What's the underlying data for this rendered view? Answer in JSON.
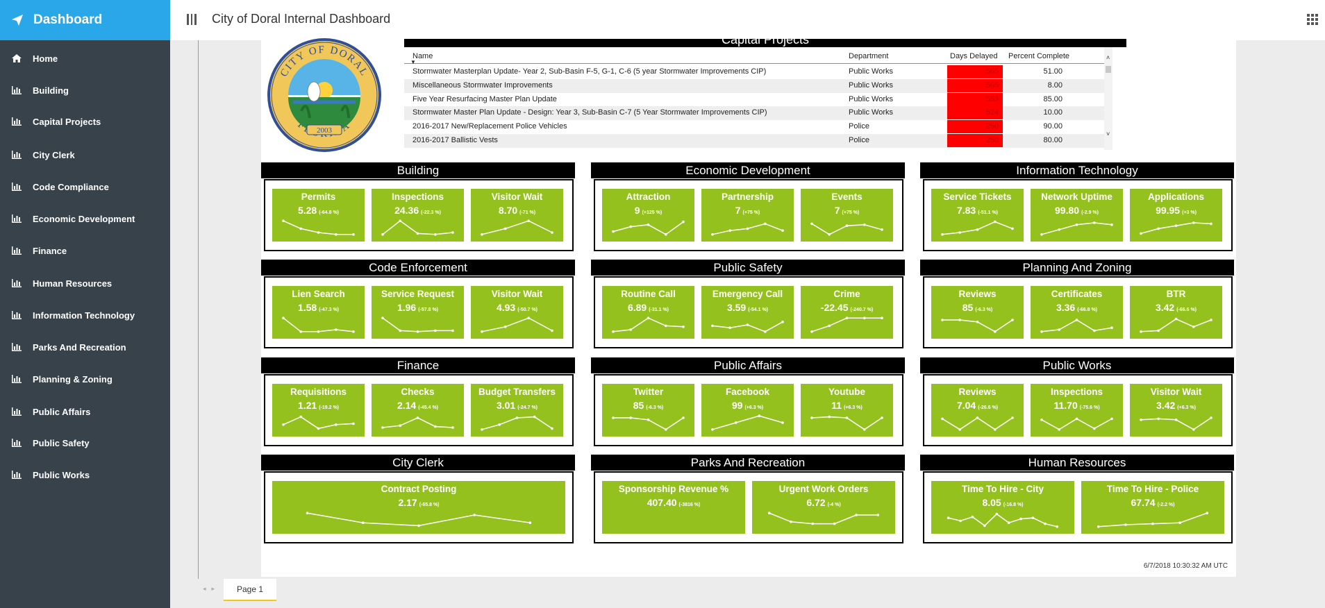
{
  "app": {
    "brand": "Dashboard",
    "title": "City of Doral Internal Dashboard"
  },
  "sidebar": {
    "items": [
      {
        "label": "Home",
        "icon": "home-icon"
      },
      {
        "label": "Building",
        "icon": "bar-chart-icon"
      },
      {
        "label": "Capital Projects",
        "icon": "bar-chart-icon"
      },
      {
        "label": "City Clerk",
        "icon": "bar-chart-icon"
      },
      {
        "label": "Code Compliance",
        "icon": "bar-chart-icon"
      },
      {
        "label": "Economic Development",
        "icon": "bar-chart-icon"
      },
      {
        "label": "Finance",
        "icon": "bar-chart-icon"
      },
      {
        "label": "Human Resources",
        "icon": "bar-chart-icon"
      },
      {
        "label": "Information Technology",
        "icon": "bar-chart-icon"
      },
      {
        "label": "Parks And Recreation",
        "icon": "bar-chart-icon"
      },
      {
        "label": "Planning & Zoning",
        "icon": "bar-chart-icon"
      },
      {
        "label": "Public Affairs",
        "icon": "bar-chart-icon"
      },
      {
        "label": "Public Safety",
        "icon": "bar-chart-icon"
      },
      {
        "label": "Public Works",
        "icon": "bar-chart-icon"
      }
    ]
  },
  "logo": {
    "top_text": "CITY OF DORAL",
    "bottom_text": "FLORIDA",
    "year": "2003"
  },
  "capital_projects": {
    "title": "Capital Projects",
    "columns": [
      "Name",
      "Department",
      "Days Delayed",
      "Percent Complete"
    ],
    "rows": [
      {
        "name": "Stormwater Masterplan Update- Year 2, Sub-Basin F-5, G-1, C-6 (5 year Stormwater Improvements CIP)",
        "department": "Public Works",
        "days": "565",
        "percent": "51.00"
      },
      {
        "name": "Miscellaneous Stormwater Improvements",
        "department": "Public Works",
        "days": "565",
        "percent": "8.00"
      },
      {
        "name": "Five Year Resurfacing Master Plan Update",
        "department": "Public Works",
        "days": "553",
        "percent": "85.00"
      },
      {
        "name": "Stormwater Master Plan Update - Design: Year 3, Sub-Basin C-7 (5 Year Stormwater Improvements CIP)",
        "department": "Public Works",
        "days": "524",
        "percent": "10.00"
      },
      {
        "name": "2016-2017 New/Replacement Police Vehicles",
        "department": "Police",
        "days": "250",
        "percent": "90.00"
      },
      {
        "name": "2016-2017 Ballistic Vests",
        "department": "Police",
        "days": "250",
        "percent": "80.00"
      }
    ]
  },
  "sections": [
    {
      "title": "Building",
      "tiles": [
        {
          "name": "Permits",
          "value": "5.28",
          "change": "(-64.8 %)",
          "trend": [
            0.85,
            0.45,
            0.25,
            0.15,
            0.15
          ]
        },
        {
          "name": "Inspections",
          "value": "24.36",
          "change": "(-22.3 %)",
          "trend": [
            0.15,
            0.85,
            0.2,
            0.15,
            0.25
          ]
        },
        {
          "name": "Visitor Wait",
          "value": "8.70",
          "change": "(-71 %)",
          "trend": [
            0.15,
            0.45,
            0.85,
            0.25
          ]
        }
      ]
    },
    {
      "title": "Economic Development",
      "tiles": [
        {
          "name": "Attraction",
          "value": "9",
          "change": "(+125 %)",
          "trend": [
            0.3,
            0.55,
            0.65,
            0.15,
            0.8
          ]
        },
        {
          "name": "Partnership",
          "value": "7",
          "change": "(+75 %)",
          "trend": [
            0.15,
            0.35,
            0.45,
            0.7,
            0.35
          ]
        },
        {
          "name": "Events",
          "value": "7",
          "change": "(+75 %)",
          "trend": [
            0.7,
            0.15,
            0.6,
            0.65,
            0.4
          ]
        }
      ]
    },
    {
      "title": "Information Technology",
      "tiles": [
        {
          "name": "Service Tickets",
          "value": "7.83",
          "change": "(-51.1 %)",
          "trend": [
            0.15,
            0.25,
            0.4,
            0.8,
            0.45
          ]
        },
        {
          "name": "Network Uptime",
          "value": "99.80",
          "change": "(-2.9 %)",
          "trend": [
            0.15,
            0.4,
            0.65,
            0.75,
            0.65
          ]
        },
        {
          "name": "Applications",
          "value": "99.95",
          "change": "(+3 %)",
          "trend": [
            0.2,
            0.45,
            0.6,
            0.75,
            0.7
          ]
        }
      ]
    },
    {
      "title": "Code Enforcement",
      "tiles": [
        {
          "name": "Lien Search",
          "value": "1.58",
          "change": "(-47.3 %)",
          "trend": [
            0.85,
            0.15,
            0.15,
            0.25,
            0.15
          ]
        },
        {
          "name": "Service Request",
          "value": "1.96",
          "change": "(-57.8 %)",
          "trend": [
            0.85,
            0.2,
            0.15,
            0.2,
            0.2
          ]
        },
        {
          "name": "Visitor Wait",
          "value": "4.93",
          "change": "(-50.7 %)",
          "trend": [
            0.15,
            0.4,
            0.85,
            0.2
          ]
        }
      ]
    },
    {
      "title": "Public Safety",
      "tiles": [
        {
          "name": "Routine Call",
          "value": "6.89",
          "change": "(-31.1 %)",
          "trend": [
            0.15,
            0.25,
            0.85,
            0.45,
            0.4
          ]
        },
        {
          "name": "Emergency Call",
          "value": "3.59",
          "change": "(-54.1 %)",
          "trend": [
            0.45,
            0.35,
            0.5,
            0.15,
            0.65
          ]
        },
        {
          "name": "Crime",
          "value": "-22.45",
          "change": "(-240.7 %)",
          "trend": [
            0.15,
            0.45,
            0.85,
            0.85,
            0.85
          ]
        }
      ]
    },
    {
      "title": "Planning And Zoning",
      "tiles": [
        {
          "name": "Reviews",
          "value": "85",
          "change": "(-6.3 %)",
          "trend": [
            0.75,
            0.75,
            0.65,
            0.15,
            0.75
          ]
        },
        {
          "name": "Certificates",
          "value": "3.36",
          "change": "(-66.8 %)",
          "trend": [
            0.15,
            0.25,
            0.75,
            0.2,
            0.35
          ]
        },
        {
          "name": "BTR",
          "value": "3.42",
          "change": "(-66.6 %)",
          "trend": [
            0.15,
            0.2,
            0.8,
            0.4,
            0.75
          ]
        }
      ]
    },
    {
      "title": "Finance",
      "tiles": [
        {
          "name": "Requisitions",
          "value": "1.21",
          "change": "(-19.2 %)",
          "trend": [
            0.4,
            0.8,
            0.2,
            0.4,
            0.45
          ]
        },
        {
          "name": "Checks",
          "value": "2.14",
          "change": "(-45.4 %)",
          "trend": [
            0.25,
            0.35,
            0.75,
            0.3,
            0.25
          ]
        },
        {
          "name": "Budget Transfers",
          "value": "3.01",
          "change": "(-24.7 %)",
          "trend": [
            0.15,
            0.4,
            0.75,
            0.8,
            0.2
          ]
        }
      ]
    },
    {
      "title": "Public Affairs",
      "tiles": [
        {
          "name": "Twitter",
          "value": "85",
          "change": "(-6.3 %)",
          "trend": [
            0.75,
            0.75,
            0.65,
            0.15,
            0.75
          ]
        },
        {
          "name": "Facebook",
          "value": "99",
          "change": "(+6.3 %)",
          "trend": [
            0.15,
            0.5,
            0.85,
            0.5
          ]
        },
        {
          "name": "Youtube",
          "value": "11",
          "change": "(+6.3 %)",
          "trend": [
            0.75,
            0.8,
            0.75,
            0.15,
            0.75
          ]
        }
      ]
    },
    {
      "title": "Public Works",
      "tiles": [
        {
          "name": "Reviews",
          "value": "7.04",
          "change": "(-26.6 %)",
          "trend": [
            0.7,
            0.15,
            0.75,
            0.15,
            0.75
          ]
        },
        {
          "name": "Inspections",
          "value": "11.70",
          "change": "(-75.6 %)",
          "trend": [
            0.65,
            0.15,
            0.7,
            0.2,
            0.7
          ]
        },
        {
          "name": "Visitor Wait",
          "value": "3.42",
          "change": "(+6.3 %)",
          "trend": [
            0.65,
            0.7,
            0.65,
            0.15,
            0.75
          ]
        }
      ]
    },
    {
      "title": "City Clerk",
      "tiles": [
        {
          "name": "Contract Posting",
          "value": "2.17",
          "change": "(-65.8 %)",
          "trend": [
            0.85,
            0.35,
            0.2,
            0.75,
            0.35
          ]
        }
      ]
    },
    {
      "title": "Parks And Recreation",
      "tiles": [
        {
          "name": "Sponsorship Revenue %",
          "value": "407.40",
          "change": "(-3816 %)",
          "trend": []
        },
        {
          "name": "Urgent Work Orders",
          "value": "6.72",
          "change": "(-4 %)",
          "trend": [
            0.85,
            0.4,
            0.3,
            0.3,
            0.75,
            0.75
          ]
        }
      ]
    },
    {
      "title": "Human Resources",
      "tiles": [
        {
          "name": "Time To Hire - City",
          "value": "8.05",
          "change": "(-16.8 %)",
          "trend": [
            0.6,
            0.45,
            0.65,
            0.2,
            0.8,
            0.35,
            0.55,
            0.6,
            0.3,
            0.15
          ]
        },
        {
          "name": "Time To Hire - Police",
          "value": "67.74",
          "change": "(-2.2 %)",
          "trend": [
            0.15,
            0.25,
            0.3,
            0.35,
            0.85
          ]
        }
      ]
    }
  ],
  "timestamp": "6/7/2018 10:30:32 AM UTC",
  "page_tab": "Page 1",
  "colors": {
    "tile": "#95c11f",
    "brand": "#2aa7e8",
    "sidebar": "#37424a",
    "delay": "#ff0000"
  }
}
